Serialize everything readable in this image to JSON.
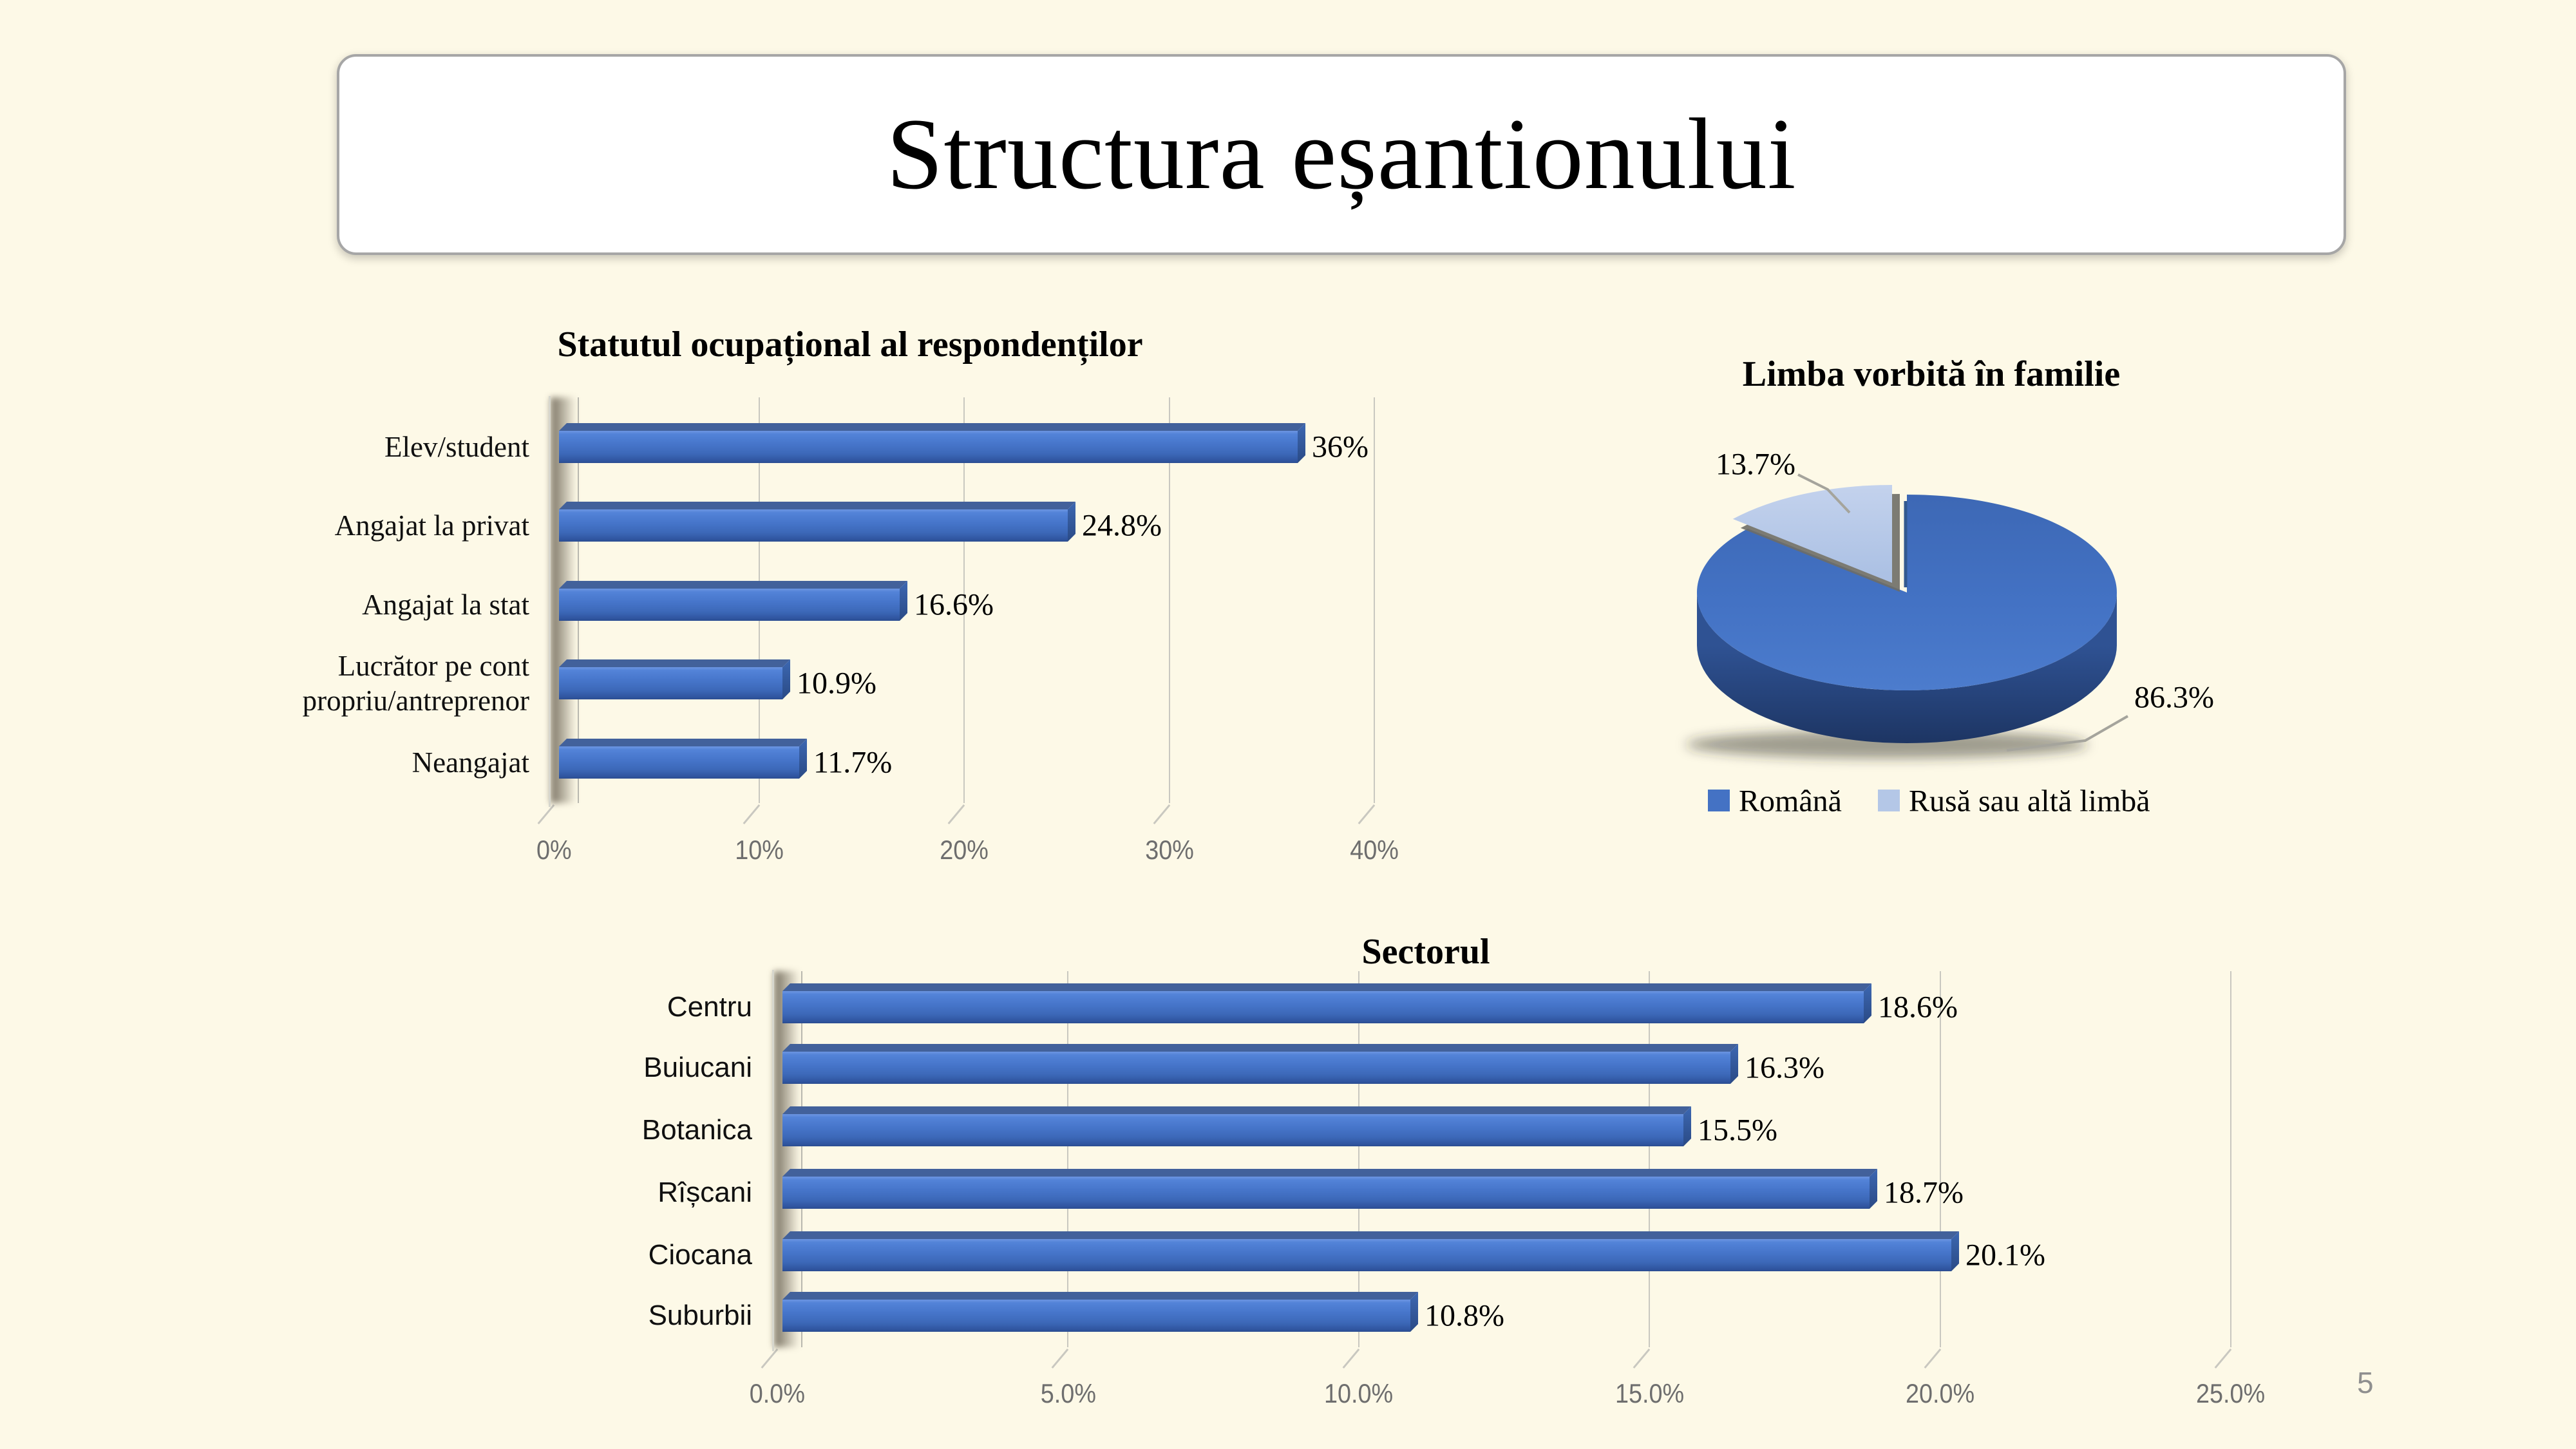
{
  "slide": {
    "title": "Structura eșantionului",
    "page_number": "5",
    "background_color": "#fdf9e7"
  },
  "chart_data": [
    {
      "type": "bar",
      "orientation": "horizontal",
      "style": "3d",
      "title": "Statutul ocupațional al respondenților",
      "categories": [
        "Elev/student",
        "Angajat la privat",
        "Angajat la stat",
        "Lucrător pe cont\npropriu/antreprenor",
        "Neangajat"
      ],
      "values": [
        36,
        24.8,
        16.6,
        10.9,
        11.7
      ],
      "value_labels": [
        "36%",
        "24.8%",
        "16.6%",
        "10.9%",
        "11.7%"
      ],
      "x_ticks": [
        "0%",
        "10%",
        "20%",
        "30%",
        "40%"
      ],
      "xlim": [
        0,
        40
      ],
      "grid": true,
      "bar_color": "#4472c4"
    },
    {
      "type": "pie",
      "style": "3d-exploded",
      "title": "Limba vorbită în familie",
      "slices": [
        {
          "label": "Română",
          "value": 86.3,
          "value_label": "86.3%",
          "color": "#4472c4",
          "exploded": false
        },
        {
          "label": "Rusă sau altă limbă",
          "value": 13.7,
          "value_label": "13.7%",
          "color": "#b4c7e7",
          "exploded": true
        }
      ],
      "legend_position": "bottom"
    },
    {
      "type": "bar",
      "orientation": "horizontal",
      "style": "3d",
      "title": "Sectorul",
      "categories": [
        "Centru",
        "Buiucani",
        "Botanica",
        "Rîșcani",
        "Ciocana",
        "Suburbii"
      ],
      "values": [
        18.6,
        16.3,
        15.5,
        18.7,
        20.1,
        10.8
      ],
      "value_labels": [
        "18.6%",
        "16.3%",
        "15.5%",
        "18.7%",
        "20.1%",
        "10.8%"
      ],
      "x_ticks": [
        "0.0%",
        "5.0%",
        "10.0%",
        "15.0%",
        "20.0%",
        "25.0%"
      ],
      "xlim": [
        0,
        25
      ],
      "grid": true,
      "bar_color": "#4472c4"
    }
  ]
}
